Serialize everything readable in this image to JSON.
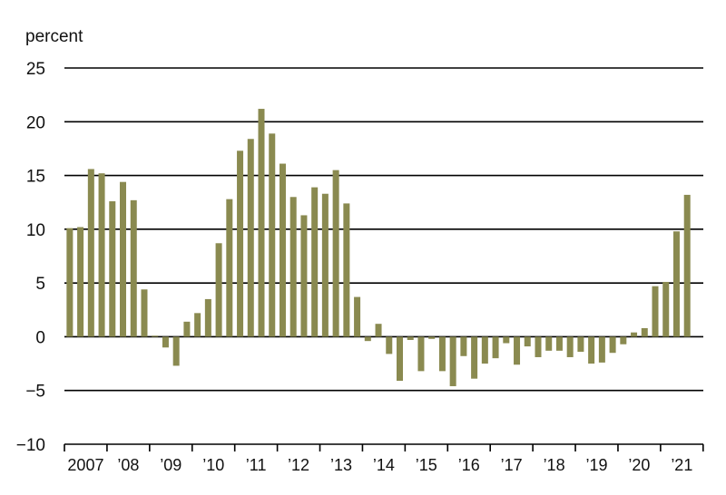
{
  "chart_data": {
    "type": "bar",
    "title": "",
    "xlabel": "",
    "ylabel": "percent",
    "ylim": [
      -10,
      25
    ],
    "yticks": [
      25,
      20,
      15,
      10,
      5,
      0,
      -5,
      -10
    ],
    "ytick_labels": [
      "25",
      "20",
      "15",
      "10",
      "5",
      "0",
      "−5",
      "−10"
    ],
    "grid": true,
    "legend": "none",
    "bar_color": "#8a8a50",
    "year_labels": [
      "2007",
      "’08",
      "’09",
      "’10",
      "’11",
      "’12",
      "’13",
      "’14",
      "’15",
      "’16",
      "’17",
      "’18",
      "’19",
      "’20",
      "’21"
    ],
    "periods_per_year": 4,
    "values": [
      10.1,
      10.2,
      15.6,
      15.2,
      12.6,
      14.4,
      12.7,
      4.4,
      0.1,
      -1.0,
      -2.7,
      1.4,
      2.2,
      3.5,
      8.7,
      12.8,
      17.3,
      18.4,
      21.2,
      18.9,
      16.1,
      13.0,
      11.3,
      13.9,
      13.3,
      15.5,
      12.4,
      3.7,
      -0.4,
      1.2,
      -1.6,
      -4.1,
      -0.3,
      -3.2,
      -0.2,
      -3.2,
      -4.6,
      -1.8,
      -3.9,
      -2.5,
      -2.0,
      -0.6,
      -2.6,
      -0.9,
      -1.9,
      -1.3,
      -1.3,
      -1.9,
      -1.4,
      -2.5,
      -2.4,
      -1.5,
      -0.7,
      0.4,
      0.8,
      4.7,
      5.1,
      9.8,
      13.2
    ]
  }
}
